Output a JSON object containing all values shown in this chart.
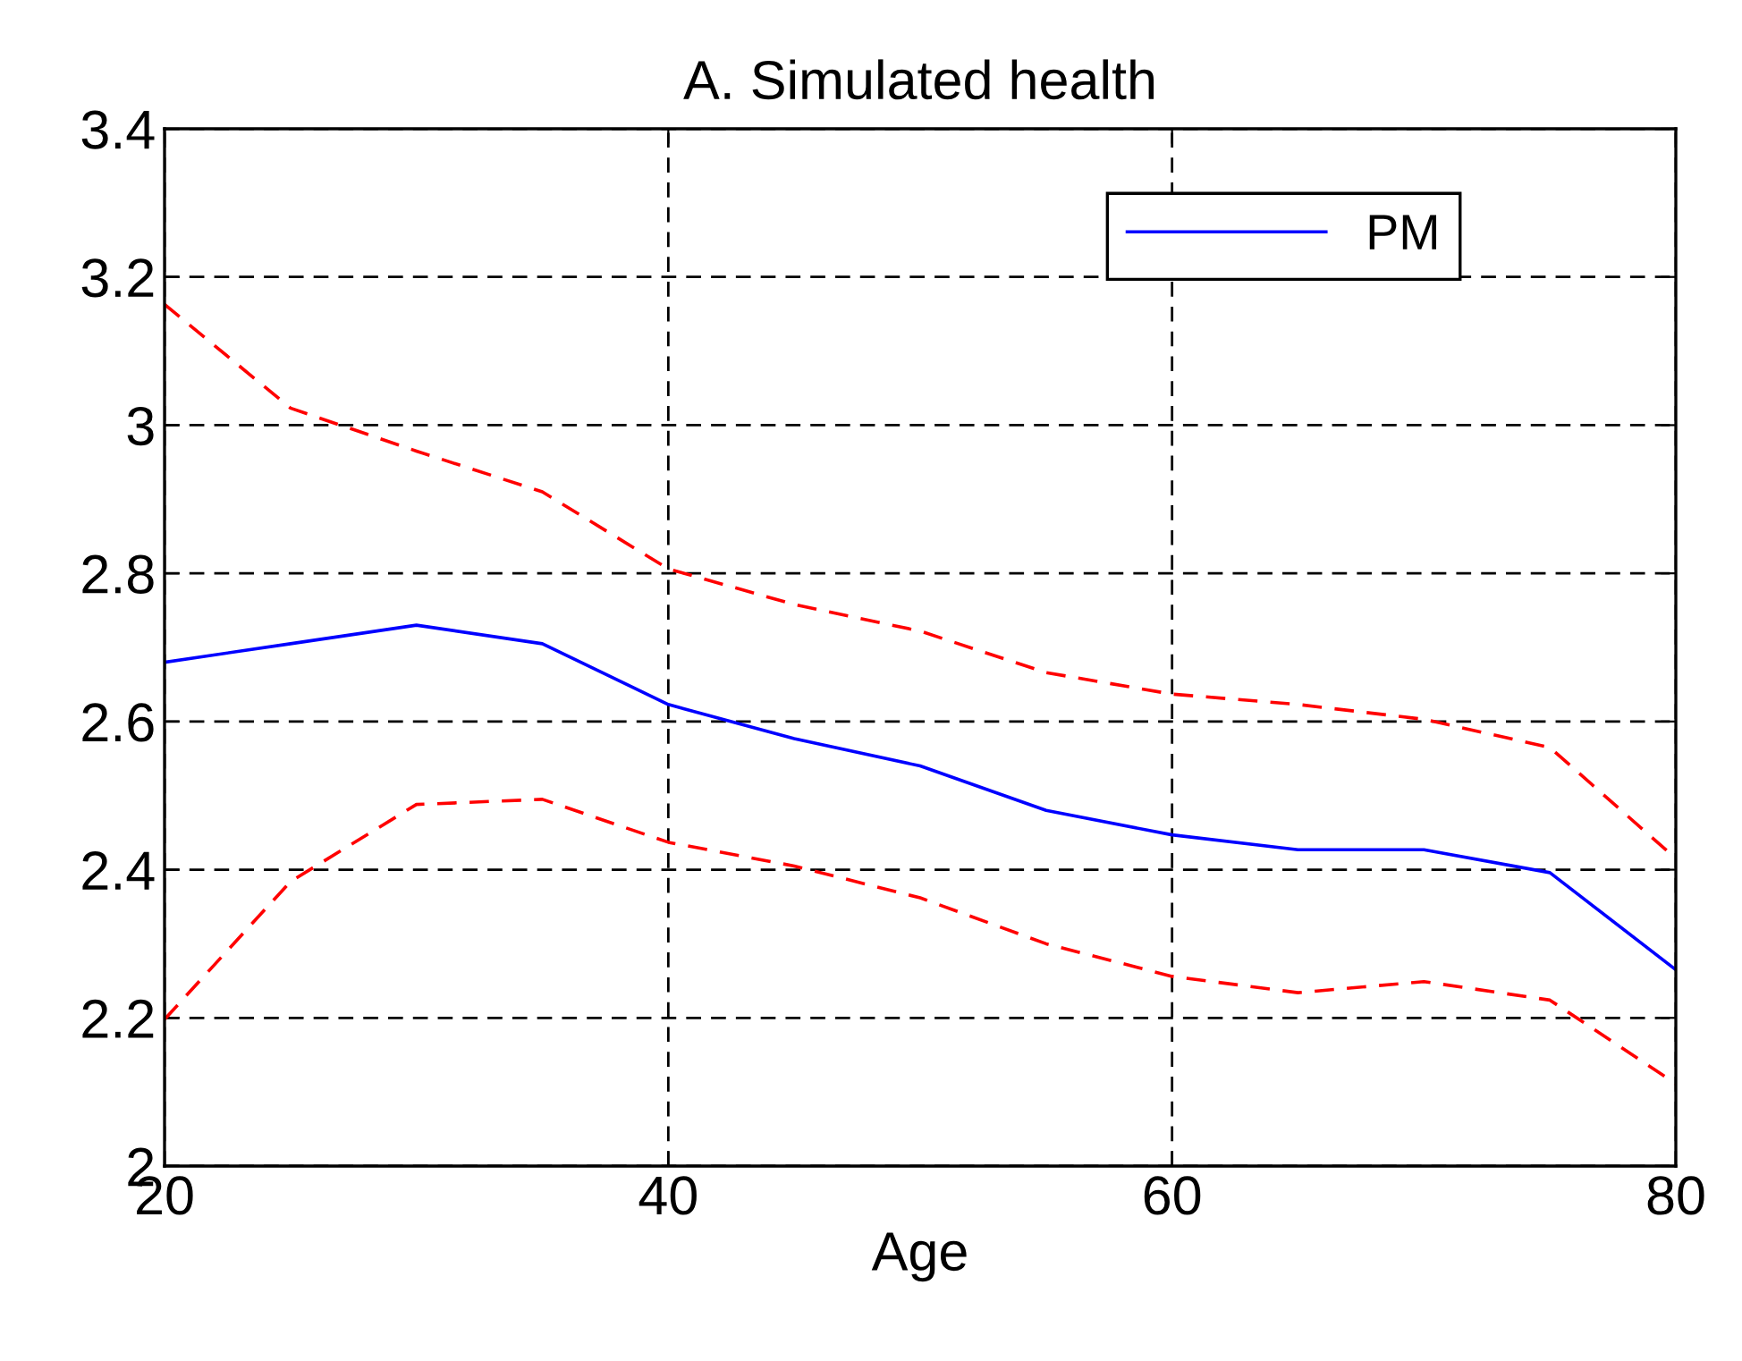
{
  "chart_data": {
    "type": "line",
    "title": "A. Simulated health",
    "xlabel": "Age",
    "x": [
      20,
      25,
      30,
      35,
      40,
      45,
      50,
      55,
      60,
      65,
      70,
      75,
      80
    ],
    "series": [
      {
        "name": "PM",
        "color": "#0000ff",
        "line_style": "solid",
        "values": [
          2.68,
          2.705,
          2.73,
          2.705,
          2.623,
          2.577,
          2.54,
          2.48,
          2.447,
          2.427,
          2.427,
          2.396,
          2.265
        ]
      },
      {
        "color": "#ff0000",
        "line_style": "dashed",
        "values": [
          3.163,
          3.023,
          2.965,
          2.91,
          2.806,
          2.758,
          2.722,
          2.666,
          2.637,
          2.623,
          2.603,
          2.565,
          2.415
        ]
      },
      {
        "color": "#ff0000",
        "line_style": "dashed",
        "values": [
          2.198,
          2.384,
          2.488,
          2.495,
          2.437,
          2.405,
          2.362,
          2.3,
          2.256,
          2.234,
          2.249,
          2.224,
          2.111
        ]
      }
    ],
    "xlim": [
      20,
      80
    ],
    "xticks": [
      20,
      40,
      60,
      80
    ],
    "ylim": [
      2,
      3.4
    ],
    "yticks": [
      2,
      2.2,
      2.4,
      2.6,
      2.8,
      3,
      3.2,
      3.4
    ],
    "grid": true,
    "legend": "top right",
    "marker": "none"
  }
}
